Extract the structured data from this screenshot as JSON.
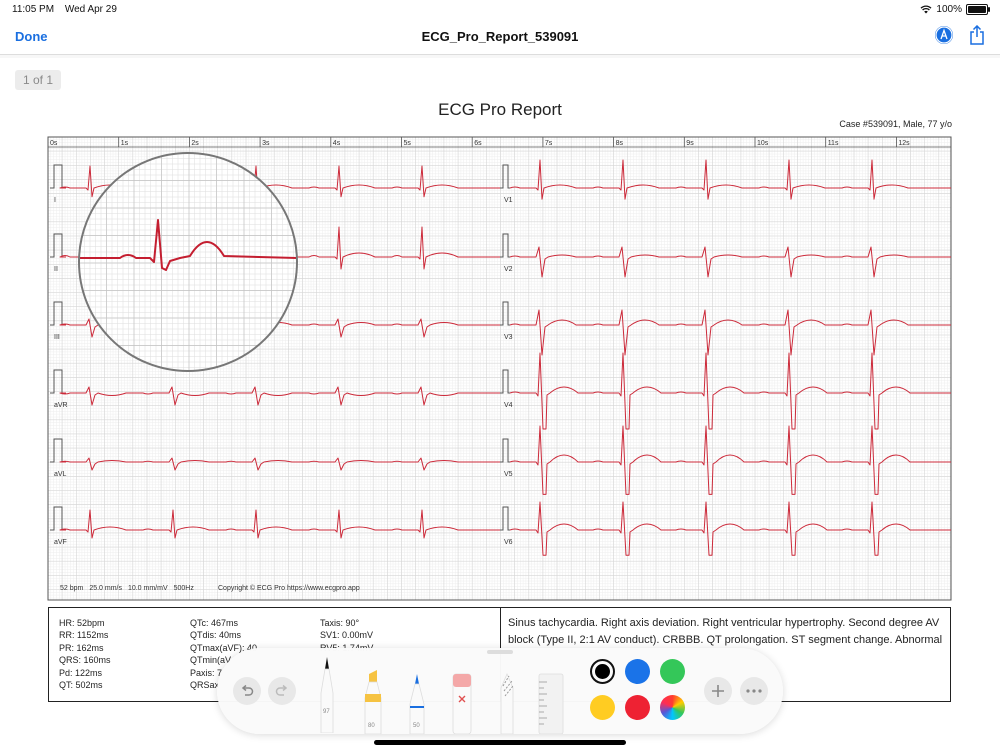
{
  "status": {
    "time": "11:05 PM",
    "date": "Wed Apr 29",
    "battery": "100%"
  },
  "nav": {
    "done": "Done",
    "title": "ECG_Pro_Report_539091"
  },
  "page_indicator": "1 of 1",
  "report": {
    "title": "ECG Pro Report",
    "case": "Case #539091, Male, 77 y/o",
    "time_labels": [
      "0s",
      "1s",
      "2s",
      "3s",
      "4s",
      "5s",
      "6s",
      "7s",
      "8s",
      "9s",
      "10s",
      "11s",
      "12s"
    ],
    "leads_left": [
      "I",
      "II",
      "III",
      "aVR",
      "aVL",
      "aVF"
    ],
    "leads_right": [
      "V1",
      "V2",
      "V3",
      "V4",
      "V5",
      "V6"
    ],
    "footer": {
      "rate": "52 bpm",
      "speed": "25.0 mm/s",
      "gain": "10.0 mm/mV",
      "filter": "500Hz"
    },
    "copyright": "Copyright © ECG Pro https://www.ecgpro.app"
  },
  "measurements": {
    "col1": [
      "HR: 52bpm",
      "RR: 1152ms",
      "PR: 162ms",
      "QRS: 160ms",
      "Pd: 122ms",
      "QT: 502ms"
    ],
    "col2": [
      "QTc: 467ms",
      "QTdis: 40ms",
      "QTmax(aVF): 40",
      "QTmin(aV",
      "Paxis: 7",
      "QRSax"
    ],
    "col3": [
      "Taxis: 90°",
      "SV1: 0.00mV",
      "RV5: 1.74mV"
    ]
  },
  "interpretation": "Sinus tachycardia. Right axis deviation. Right ventricular hypertrophy. Second degree AV block (Type II, 2:1 AV conduct). CRBBB. QT prolongation. ST segment change. Abnormal",
  "toolbar": {
    "pen_width": "97",
    "highlighter_width": "80",
    "pencil_width": "50",
    "colors": [
      "#000000",
      "#1a73e8",
      "#34c759",
      "#ffcc22",
      "#ee2233",
      "spectrum"
    ],
    "selected_color": "#000000"
  }
}
